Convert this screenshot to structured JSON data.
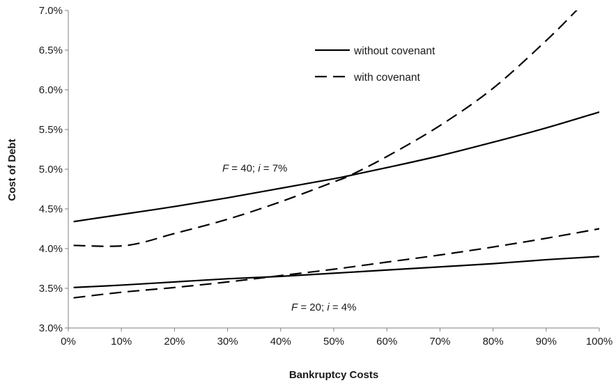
{
  "chart_data": {
    "type": "line",
    "title": "",
    "xlabel": "Bankruptcy Costs",
    "ylabel": "Cost of Debt",
    "xlim": [
      0,
      100
    ],
    "ylim": [
      3.0,
      7.0
    ],
    "x_ticks": [
      "0%",
      "10%",
      "20%",
      "30%",
      "40%",
      "50%",
      "60%",
      "70%",
      "80%",
      "90%",
      "100%"
    ],
    "y_ticks": [
      "3.0%",
      "3.5%",
      "4.0%",
      "4.5%",
      "5.0%",
      "5.5%",
      "6.0%",
      "6.5%",
      "7.0%"
    ],
    "grid": false,
    "legend": {
      "position": "top-center",
      "entries": [
        {
          "label": "without covenant",
          "style": "solid"
        },
        {
          "label": "with covenant",
          "style": "dashed"
        }
      ]
    },
    "annotations": [
      {
        "parts": [
          {
            "t": "F",
            "italic": true
          },
          {
            "t": " = 40; ",
            "italic": false
          },
          {
            "t": "i",
            "italic": true
          },
          {
            "t": " = 7%",
            "italic": false
          }
        ],
        "x": 29,
        "y": 4.97
      },
      {
        "parts": [
          {
            "t": "F",
            "italic": true
          },
          {
            "t": " = 20; ",
            "italic": false
          },
          {
            "t": "i",
            "italic": true
          },
          {
            "t": " = 4%",
            "italic": false
          }
        ],
        "x": 42,
        "y": 3.22
      }
    ],
    "series": [
      {
        "style": "solid",
        "x": [
          1,
          10,
          20,
          30,
          40,
          50,
          53,
          60,
          70,
          80,
          90,
          100
        ],
        "values": [
          4.34,
          4.43,
          4.53,
          4.64,
          4.76,
          4.88,
          4.92,
          5.02,
          5.17,
          5.34,
          5.52,
          5.72
        ]
      },
      {
        "style": "dashed",
        "x": [
          1,
          11,
          20,
          30,
          40,
          50,
          53,
          60,
          70,
          80,
          90,
          96
        ],
        "values": [
          4.04,
          4.04,
          4.19,
          4.37,
          4.59,
          4.84,
          4.92,
          5.16,
          5.55,
          6.02,
          6.62,
          7.02
        ]
      },
      {
        "style": "solid",
        "x": [
          1,
          10,
          20,
          30,
          40,
          50,
          60,
          70,
          80,
          90,
          100
        ],
        "values": [
          3.51,
          3.54,
          3.58,
          3.62,
          3.65,
          3.69,
          3.73,
          3.77,
          3.81,
          3.86,
          3.9
        ]
      },
      {
        "style": "dashed",
        "x": [
          1,
          10,
          20,
          30,
          40,
          50,
          60,
          70,
          80,
          90,
          100
        ],
        "values": [
          3.38,
          3.45,
          3.51,
          3.58,
          3.66,
          3.74,
          3.83,
          3.92,
          4.02,
          4.13,
          4.25
        ]
      }
    ]
  }
}
